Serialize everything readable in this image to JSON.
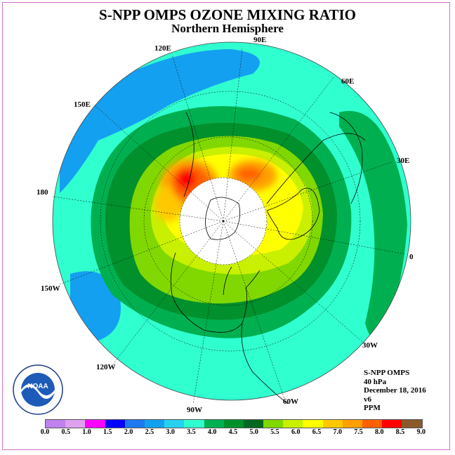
{
  "title": "S-NPP OMPS OZONE MIXING RATIO",
  "subtitle": "Northern Hemisphere",
  "longitudes": {
    "lon_90e": "90E",
    "lon_60e": "60E",
    "lon_30e": "30E",
    "lon_0": "0",
    "lon_30w": "30W",
    "lon_60w": "60W",
    "lon_90w": "90W",
    "lon_120w": "120W",
    "lon_150w": "150W",
    "lon_180": "180",
    "lon_150e": "150E",
    "lon_120e": "120E"
  },
  "info": {
    "instrument": "S-NPP OMPS",
    "level": "40 hPa",
    "date": "December 18, 2016",
    "version": "v6",
    "units": "PPM"
  },
  "logo": {
    "text": "NOAA",
    "ring_text": "NATIONAL OCEANIC AND ATMOSPHERIC ADMINISTRATION · U.S. DEPARTMENT OF COMMERCE"
  },
  "colorbar": {
    "ticks": [
      "0.0",
      "0.5",
      "1.0",
      "1.5",
      "2.0",
      "2.5",
      "3.0",
      "3.5",
      "4.0",
      "4.5",
      "5.0",
      "5.5",
      "6.0",
      "6.5",
      "7.0",
      "7.5",
      "8.0",
      "8.5",
      "9.0"
    ],
    "colors": [
      "#c080f0",
      "#e0a0f0",
      "#ff00ff",
      "#0000ff",
      "#1e78f0",
      "#14a0f0",
      "#28d0f0",
      "#30ffd0",
      "#00b050",
      "#00902c",
      "#006820",
      "#80d800",
      "#c8f000",
      "#ffff00",
      "#ffc800",
      "#ffa000",
      "#ff6000",
      "#ff0000",
      "#8b5a2b"
    ]
  }
}
